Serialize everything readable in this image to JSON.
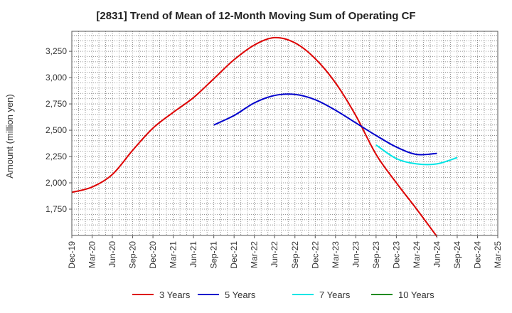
{
  "chart_data": {
    "type": "line",
    "title": "[2831]  Trend of Mean of 12-Month Moving Sum of Operating CF",
    "xlabel": "",
    "ylabel": "Amount (million yen)",
    "categories": [
      "Dec-19",
      "Mar-20",
      "Jun-20",
      "Sep-20",
      "Dec-20",
      "Mar-21",
      "Jun-21",
      "Sep-21",
      "Dec-21",
      "Mar-22",
      "Jun-22",
      "Sep-22",
      "Dec-22",
      "Mar-23",
      "Jun-23",
      "Sep-23",
      "Dec-23",
      "Mar-24",
      "Jun-24",
      "Sep-24",
      "Dec-24",
      "Mar-25"
    ],
    "ylim": [
      1500,
      3440
    ],
    "yticks": [
      1750,
      2000,
      2250,
      2500,
      2750,
      3000,
      3250
    ],
    "ytick_labels": [
      "1,750",
      "2,000",
      "2,250",
      "2,500",
      "2,750",
      "3,000",
      "3,250"
    ],
    "legend": "bottom",
    "grid": true,
    "series": [
      {
        "name": "3 Years",
        "color": "#dd0000",
        "values": [
          1910,
          1960,
          2080,
          2310,
          2520,
          2670,
          2810,
          2990,
          3170,
          3310,
          3380,
          3330,
          3180,
          2950,
          2640,
          2270,
          2000,
          1750,
          1490,
          null,
          null,
          null
        ]
      },
      {
        "name": "5 Years",
        "color": "#0000cc",
        "values": [
          null,
          null,
          null,
          null,
          null,
          null,
          null,
          2550,
          2640,
          2760,
          2830,
          2840,
          2790,
          2690,
          2570,
          2450,
          2340,
          2270,
          2280,
          null,
          null,
          null
        ]
      },
      {
        "name": "7 Years",
        "color": "#00e5e5",
        "values": [
          null,
          null,
          null,
          null,
          null,
          null,
          null,
          null,
          null,
          null,
          null,
          null,
          null,
          null,
          null,
          2360,
          2230,
          2180,
          2180,
          2240,
          null,
          null
        ]
      },
      {
        "name": "10 Years",
        "color": "#228b22",
        "values": [
          null,
          null,
          null,
          null,
          null,
          null,
          null,
          null,
          null,
          null,
          null,
          null,
          null,
          null,
          null,
          null,
          null,
          null,
          null,
          null,
          null,
          null
        ]
      }
    ]
  }
}
